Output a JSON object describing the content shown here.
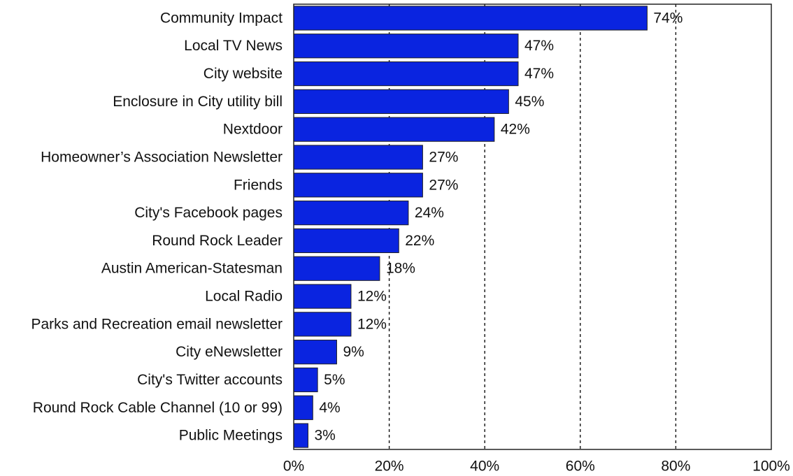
{
  "chart_data": {
    "type": "bar",
    "orientation": "horizontal",
    "categories": [
      "Community Impact",
      "Local TV News",
      "City website",
      "Enclosure in City utility bill",
      "Nextdoor",
      "Homeowner’s Association Newsletter",
      "Friends",
      "City's Facebook pages",
      "Round Rock Leader",
      "Austin American-Statesman",
      "Local Radio",
      "Parks and Recreation email newsletter",
      "City eNewsletter",
      "City's Twitter accounts",
      "Round Rock Cable Channel (10 or 99)",
      "Public Meetings"
    ],
    "values": [
      74,
      47,
      47,
      45,
      42,
      27,
      27,
      24,
      22,
      18,
      12,
      12,
      9,
      5,
      4,
      3
    ],
    "data_labels": [
      "74%",
      "47%",
      "47%",
      "45%",
      "42%",
      "27%",
      "27%",
      "24%",
      "22%",
      "18%",
      "12%",
      "12%",
      "9%",
      "5%",
      "4%",
      "3%"
    ],
    "xlim": [
      0,
      100
    ],
    "x_ticks": [
      0,
      20,
      40,
      60,
      80,
      100
    ],
    "x_tick_labels": [
      "0%",
      "20%",
      "40%",
      "60%",
      "80%",
      "100%"
    ],
    "grid": "vertical dashed",
    "bar_color": "#0a24e0"
  }
}
